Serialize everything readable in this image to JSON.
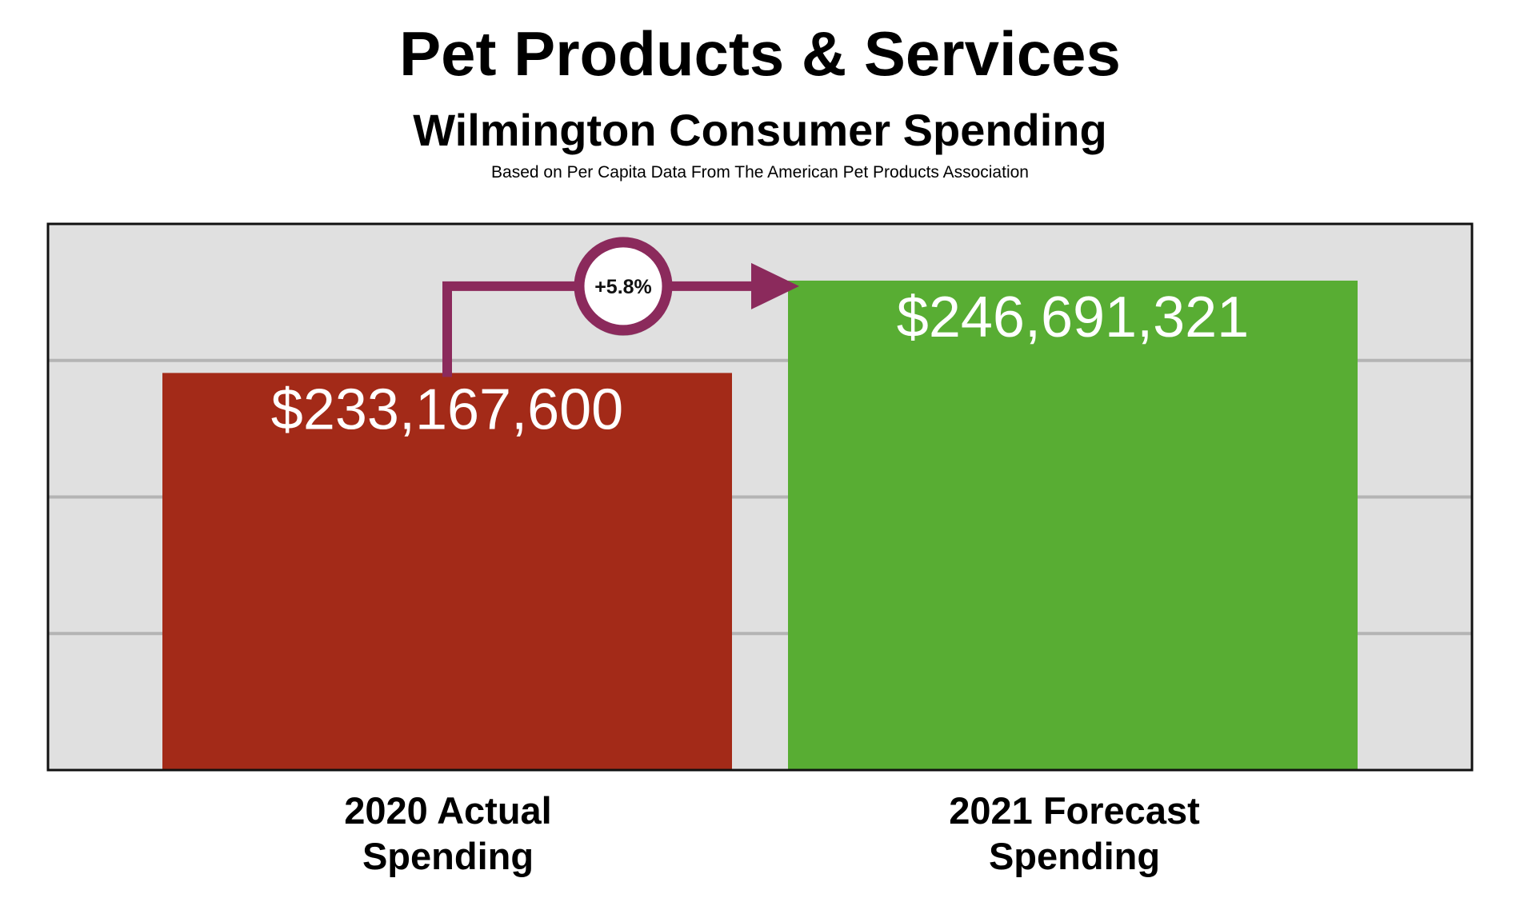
{
  "header": {
    "title": "Pet Products & Services",
    "subtitle": "Wilmington Consumer Spending",
    "source_note": "Based on Per Capita Data From The American Pet Products Association"
  },
  "colors": {
    "plot_background": "#e0e0e0",
    "gridline": "#b4b4b4",
    "bar_2020": "#a32a18",
    "bar_2021": "#58ad33",
    "arrow": "#8b2a5c",
    "value_label": "#ffffff"
  },
  "chart_data": {
    "type": "bar",
    "title": "Pet Products & Services",
    "subtitle": "Wilmington Consumer Spending",
    "categories": [
      "2020 Actual Spending",
      "2021 Forecast Spending"
    ],
    "category_lines": [
      [
        "2020 Actual",
        "Spending"
      ],
      [
        "2021 Forecast",
        "Spending"
      ]
    ],
    "values": [
      233167600,
      246691321
    ],
    "data_labels": [
      "$233,167,600",
      "$246,691,321"
    ],
    "change_annotation": "+5.8%",
    "ylim": [
      175000000,
      255000000
    ],
    "gridlines": [
      195000000,
      215000000,
      235000000
    ],
    "grid": true,
    "legend": "none",
    "xlabel": "",
    "ylabel": ""
  }
}
